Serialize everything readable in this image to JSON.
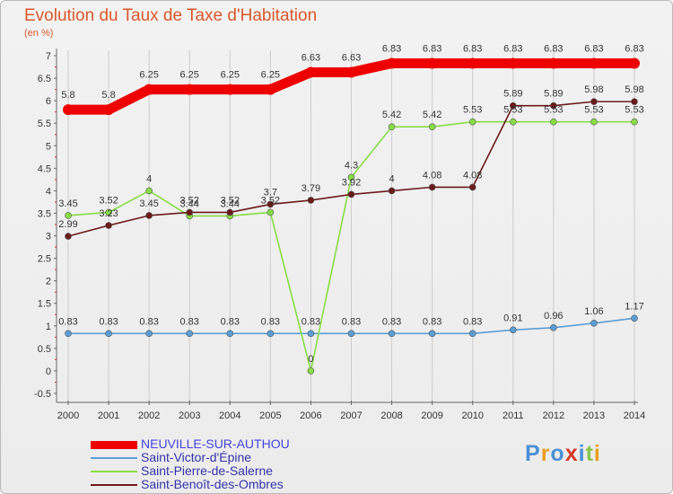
{
  "title": "Evolution du Taux de Taxe d'Habitation",
  "subtitle": "(en %)",
  "logo_text": "Proxiti",
  "chart_data": {
    "type": "line",
    "x": [
      2000,
      2001,
      2002,
      2003,
      2004,
      2005,
      2006,
      2007,
      2008,
      2009,
      2010,
      2011,
      2012,
      2013,
      2014
    ],
    "ylim": [
      -0.5,
      7
    ],
    "yticks": [
      -0.5,
      0,
      0.5,
      1,
      1.5,
      2,
      2.5,
      3,
      3.5,
      4,
      4.5,
      5,
      5.5,
      6,
      6.5,
      7
    ],
    "grid": "vertical",
    "legend_position": "bottom-left",
    "series": [
      {
        "name": "NEUVILLE-SUR-AUTHOU",
        "color": "#ee0000",
        "values": [
          5.8,
          5.8,
          6.25,
          6.25,
          6.25,
          6.25,
          6.63,
          6.63,
          6.83,
          6.83,
          6.83,
          6.83,
          6.83,
          6.83,
          6.83
        ],
        "labels": [
          "5.8",
          "5.8",
          "6.25",
          "6.25",
          "6.25",
          "6.25",
          "6.63",
          "6.63",
          "6.83",
          "6.83",
          "6.83",
          "6.83",
          "6.83",
          "6.83",
          "6.83"
        ]
      },
      {
        "name": "Saint-Victor-d'Épine",
        "color": "#5b9ed6",
        "values": [
          0.83,
          0.83,
          0.83,
          0.83,
          0.83,
          0.83,
          0.83,
          0.83,
          0.83,
          0.83,
          0.83,
          0.91,
          0.96,
          1.06,
          1.17
        ],
        "labels": [
          "0.83",
          "0.83",
          "0.83",
          "0.83",
          "0.83",
          "0.83",
          "0.83",
          "0.83",
          "0.83",
          "0.83",
          "0.83",
          "0.91",
          "0.96",
          "1.06",
          "1.17"
        ]
      },
      {
        "name": "Saint-Pierre-de-Salerne",
        "color": "#88dd44",
        "values": [
          3.45,
          3.52,
          4,
          3.44,
          3.44,
          3.52,
          0,
          4.3,
          5.42,
          5.42,
          5.53,
          5.53,
          5.53,
          5.53,
          5.53
        ],
        "labels": [
          "3.45",
          "3.52",
          "4",
          "3.44",
          "3.44",
          "3.52",
          "0",
          "4.3",
          "5.42",
          "5.42",
          "5.53",
          "5.53",
          "5.53",
          "5.53",
          "5.53"
        ]
      },
      {
        "name": "Saint-Benoît-des-Ombres",
        "color": "#6b1a1a",
        "values": [
          2.99,
          3.23,
          3.45,
          3.52,
          3.52,
          3.7,
          3.79,
          3.92,
          4,
          4.08,
          4.08,
          5.89,
          5.89,
          5.98,
          5.98
        ],
        "labels": [
          "2.99",
          "3.23",
          "3.45",
          "3.52",
          "3.52",
          "3.7",
          "3.79",
          "3.92",
          "4",
          "4.08",
          "4.08",
          "5.89",
          "5.89",
          "5.98",
          "5.98"
        ]
      }
    ]
  }
}
